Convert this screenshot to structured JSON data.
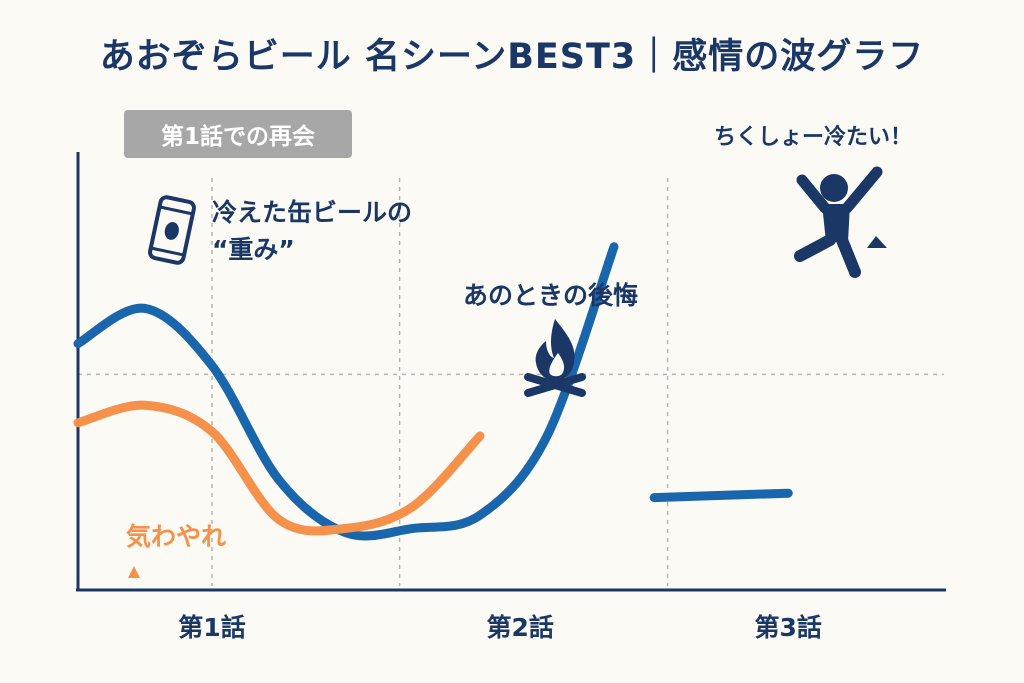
{
  "title": "あおぞらビール 名シーンBEST3｜感情の波グラフ",
  "badge": "第1話での再会",
  "colors": {
    "navy": "#1b3766",
    "blue": "#1a66ad",
    "orange": "#f5914a",
    "grid": "#b5b5b5",
    "badge": "#a7a7a7",
    "background": "#fbfaf4"
  },
  "icons": [
    "beer-can-icon",
    "campfire-icon",
    "jumping-person-icon",
    "arrow-up-icon"
  ],
  "chart_data": {
    "type": "line",
    "categories": [
      "第1話",
      "第2話",
      "第3話"
    ],
    "grid": true,
    "series": [
      {
        "color": "#1a66ad",
        "points": [
          [
            0.0,
            0.56
          ],
          [
            0.5,
            0.64
          ],
          [
            1.0,
            0.51
          ],
          [
            1.5,
            0.25
          ],
          [
            2.0,
            0.13
          ],
          [
            2.5,
            0.14
          ],
          [
            3.0,
            0.17
          ],
          [
            3.5,
            0.35
          ],
          [
            4.0,
            0.78
          ]
        ],
        "tail": [
          [
            4.3,
            0.21
          ],
          [
            5.3,
            0.22
          ]
        ]
      },
      {
        "color": "#f5914a",
        "points": [
          [
            0.0,
            0.38
          ],
          [
            0.5,
            0.42
          ],
          [
            1.0,
            0.36
          ],
          [
            1.5,
            0.16
          ],
          [
            2.0,
            0.14
          ],
          [
            2.5,
            0.19
          ],
          [
            3.0,
            0.35
          ]
        ]
      }
    ],
    "annotations": [
      {
        "text": "冷えた缶ビールの",
        "color": "#1b3766"
      },
      {
        "text": "“重み”",
        "color": "#1b3766"
      },
      {
        "text": "あのときの後悔",
        "color": "#1b3766"
      },
      {
        "text": "ちくしょー冷たい！",
        "color": "#1b3766"
      },
      {
        "text": "気わやれ",
        "color": "#f5914a"
      }
    ]
  }
}
